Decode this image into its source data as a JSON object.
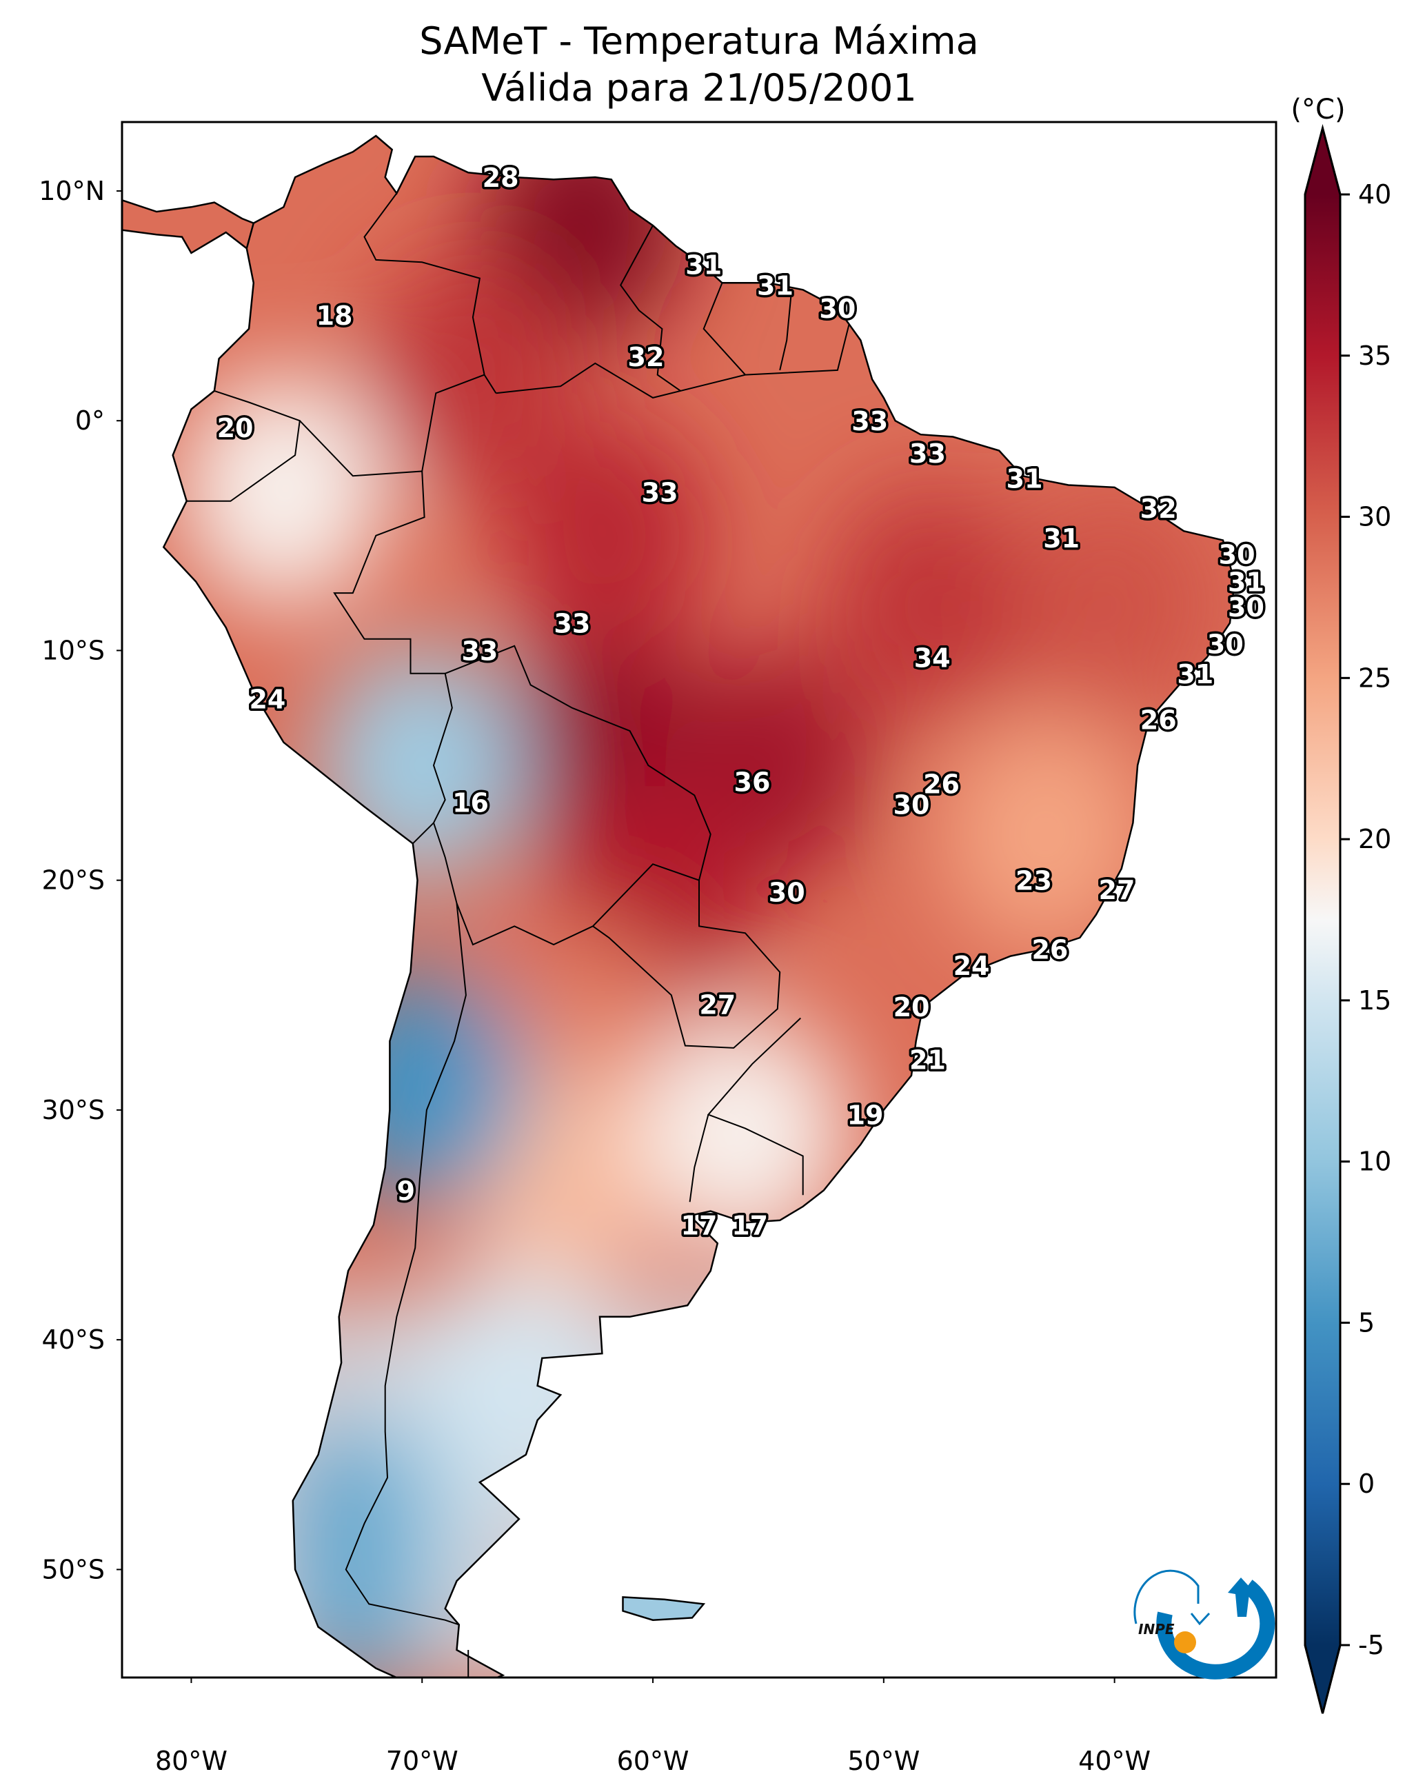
{
  "title": {
    "line1": "SAMeT - Temperatura Máxima",
    "line2": "Válida para 21/05/2001"
  },
  "chart_data": {
    "type": "heatmap",
    "subtype": "geographic-map",
    "title": "SAMeT - Temperatura Máxima",
    "subtitle": "Válida para 21/05/2001",
    "variable": "Maximum temperature",
    "units": "(°C)",
    "region": "South America",
    "extent": {
      "lon": [
        -83,
        -33
      ],
      "lat": [
        -54.7,
        13
      ]
    },
    "x_ticks": [
      {
        "value": -80,
        "label": "80°W"
      },
      {
        "value": -70,
        "label": "70°W"
      },
      {
        "value": -60,
        "label": "60°W"
      },
      {
        "value": -50,
        "label": "50°W"
      },
      {
        "value": -40,
        "label": "40°W"
      }
    ],
    "y_ticks": [
      {
        "value": 10,
        "label": "10°N"
      },
      {
        "value": 0,
        "label": "0°"
      },
      {
        "value": -10,
        "label": "10°S"
      },
      {
        "value": -20,
        "label": "20°S"
      },
      {
        "value": -30,
        "label": "30°S"
      },
      {
        "value": -40,
        "label": "40°S"
      },
      {
        "value": -50,
        "label": "50°S"
      }
    ],
    "colorbar": {
      "label": "(°C)",
      "colormap": "RdBu_r",
      "range": [
        -5,
        40
      ],
      "extend": "both",
      "ticks": [
        -5,
        0,
        5,
        10,
        15,
        20,
        25,
        30,
        35,
        40
      ],
      "tick_labels": [
        "-5",
        "0",
        "5",
        "10",
        "15",
        "20",
        "25",
        "30",
        "35",
        "40"
      ],
      "stops": [
        {
          "value": -5,
          "color": "#053061"
        },
        {
          "value": 0,
          "color": "#2166ac"
        },
        {
          "value": 5,
          "color": "#4393c3"
        },
        {
          "value": 10,
          "color": "#92c5de"
        },
        {
          "value": 15,
          "color": "#d1e5f0"
        },
        {
          "value": 17.5,
          "color": "#f7f7f7"
        },
        {
          "value": 20,
          "color": "#fddbc7"
        },
        {
          "value": 25,
          "color": "#f4a582"
        },
        {
          "value": 30,
          "color": "#d6604d"
        },
        {
          "value": 35,
          "color": "#b2182b"
        },
        {
          "value": 40,
          "color": "#67001f"
        }
      ]
    },
    "point_labels": [
      {
        "lon": -66.6,
        "lat": 10.6,
        "value": 28
      },
      {
        "lon": -73.8,
        "lat": 4.6,
        "value": 18
      },
      {
        "lon": -78.1,
        "lat": -0.3,
        "value": 20
      },
      {
        "lon": -57.8,
        "lat": 6.8,
        "value": 31
      },
      {
        "lon": -54.7,
        "lat": 5.9,
        "value": 31
      },
      {
        "lon": -52.0,
        "lat": 4.9,
        "value": 30
      },
      {
        "lon": -60.3,
        "lat": 2.8,
        "value": 32
      },
      {
        "lon": -50.6,
        "lat": 0.0,
        "value": 33
      },
      {
        "lon": -48.1,
        "lat": -1.4,
        "value": 33
      },
      {
        "lon": -43.9,
        "lat": -2.5,
        "value": 31
      },
      {
        "lon": -38.1,
        "lat": -3.8,
        "value": 32
      },
      {
        "lon": -42.3,
        "lat": -5.1,
        "value": 31
      },
      {
        "lon": -34.7,
        "lat": -5.8,
        "value": 30
      },
      {
        "lon": -34.3,
        "lat": -7.0,
        "value": 31
      },
      {
        "lon": -34.3,
        "lat": -8.1,
        "value": 30
      },
      {
        "lon": -35.2,
        "lat": -9.7,
        "value": 30
      },
      {
        "lon": -36.5,
        "lat": -11.0,
        "value": 31
      },
      {
        "lon": -59.7,
        "lat": -3.1,
        "value": 33
      },
      {
        "lon": -63.5,
        "lat": -8.8,
        "value": 33
      },
      {
        "lon": -67.5,
        "lat": -10.0,
        "value": 33
      },
      {
        "lon": -47.9,
        "lat": -10.3,
        "value": 34
      },
      {
        "lon": -76.7,
        "lat": -12.1,
        "value": 24
      },
      {
        "lon": -38.1,
        "lat": -13.0,
        "value": 26
      },
      {
        "lon": -55.7,
        "lat": -15.7,
        "value": 36
      },
      {
        "lon": -47.5,
        "lat": -15.8,
        "value": 26
      },
      {
        "lon": -67.9,
        "lat": -16.6,
        "value": 16
      },
      {
        "lon": -48.8,
        "lat": -16.7,
        "value": 30
      },
      {
        "lon": -43.5,
        "lat": -20.0,
        "value": 23
      },
      {
        "lon": -39.9,
        "lat": -20.4,
        "value": 27
      },
      {
        "lon": -54.2,
        "lat": -20.5,
        "value": 30
      },
      {
        "lon": -42.8,
        "lat": -23.0,
        "value": 26
      },
      {
        "lon": -46.2,
        "lat": -23.7,
        "value": 24
      },
      {
        "lon": -57.2,
        "lat": -25.4,
        "value": 27
      },
      {
        "lon": -48.8,
        "lat": -25.5,
        "value": 20
      },
      {
        "lon": -48.1,
        "lat": -27.8,
        "value": 21
      },
      {
        "lon": -50.8,
        "lat": -30.2,
        "value": 19
      },
      {
        "lon": -70.7,
        "lat": -33.5,
        "value": 9
      },
      {
        "lon": -58.0,
        "lat": -35.0,
        "value": 17
      },
      {
        "lon": -55.8,
        "lat": -35.0,
        "value": 17
      }
    ],
    "approx_field": [
      {
        "lon": -63,
        "lat": 8.5,
        "value": 38
      },
      {
        "lon": -62,
        "lat": -14,
        "value": 37
      },
      {
        "lon": -55,
        "lat": -15,
        "value": 36
      },
      {
        "lon": -62,
        "lat": -5,
        "value": 34
      },
      {
        "lon": -60,
        "lat": -21,
        "value": 35
      },
      {
        "lon": -48,
        "lat": -8,
        "value": 33
      },
      {
        "lon": -68,
        "lat": 2,
        "value": 33
      },
      {
        "lon": -40,
        "lat": -8,
        "value": 31
      },
      {
        "lon": -63,
        "lat": -27,
        "value": 28
      },
      {
        "lon": -43,
        "lat": -18,
        "value": 25
      },
      {
        "lon": -64,
        "lat": -33,
        "value": 23
      },
      {
        "lon": -56,
        "lat": -31,
        "value": 18
      },
      {
        "lon": -66,
        "lat": -42,
        "value": 16
      },
      {
        "lon": -70,
        "lat": -29,
        "value": 5
      },
      {
        "lon": -70,
        "lat": -15,
        "value": 11
      },
      {
        "lon": -72,
        "lat": -48,
        "value": 8
      },
      {
        "lon": -76,
        "lat": -3,
        "value": 18
      }
    ]
  },
  "logo": {
    "text": "INPE",
    "color_primary": "#0077bb",
    "color_accent": "#f39c12"
  }
}
